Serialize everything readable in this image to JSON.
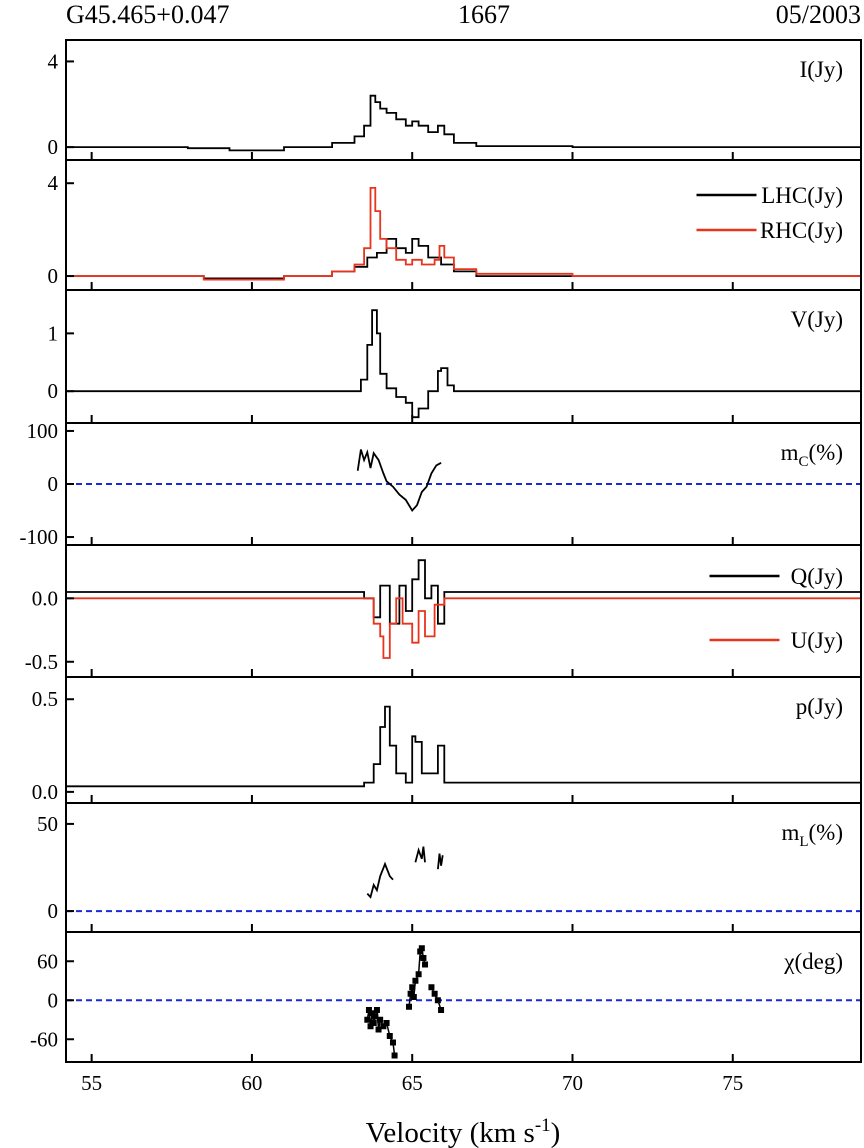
{
  "header": {
    "left": "G45.465+0.047",
    "center": "1667",
    "right": "05/2003"
  },
  "colors": {
    "black": "#000000",
    "red": "#e8341c",
    "zero_line": "#1a2bd6"
  },
  "chart_data": {
    "type": "line",
    "xlabel_main": "Velocity (km s",
    "xlabel_sup": "-1",
    "xlabel_tail": ")",
    "xlim": [
      54.2,
      79.0
    ],
    "xticks": [
      "55",
      "60",
      "65",
      "70",
      "75"
    ],
    "xtick_values": [
      55,
      60,
      65,
      70,
      75
    ],
    "panels": [
      {
        "id": "I",
        "label": "I(Jy)",
        "ylim": [
          -0.6,
          5.0
        ],
        "yticks": [
          0,
          4
        ],
        "ytick_labels": [
          "0",
          "4"
        ],
        "zero_line": false,
        "series": [
          {
            "color": "#000000",
            "legend": "",
            "kind": "step",
            "points": [
              [
                54.2,
                0.0
              ],
              [
                58.0,
                -0.05
              ],
              [
                59.3,
                -0.15
              ],
              [
                61.0,
                0.0
              ],
              [
                62.5,
                0.2
              ],
              [
                63.2,
                0.5
              ],
              [
                63.5,
                1.0
              ],
              [
                63.7,
                2.4
              ],
              [
                63.85,
                2.1
              ],
              [
                64.0,
                1.8
              ],
              [
                64.2,
                1.6
              ],
              [
                64.5,
                1.3
              ],
              [
                64.8,
                1.0
              ],
              [
                65.0,
                1.2
              ],
              [
                65.2,
                1.0
              ],
              [
                65.5,
                0.7
              ],
              [
                65.8,
                1.0
              ],
              [
                66.0,
                0.6
              ],
              [
                66.3,
                0.2
              ],
              [
                67.0,
                0.05
              ],
              [
                70.0,
                0.0
              ],
              [
                79.0,
                0.0
              ]
            ]
          }
        ]
      },
      {
        "id": "LR",
        "label": "",
        "ylim": [
          -0.6,
          5.0
        ],
        "yticks": [
          0,
          4
        ],
        "ytick_labels": [
          "0",
          "4"
        ],
        "zero_line": false,
        "series": [
          {
            "color": "#000000",
            "legend": "LHC(Jy)",
            "kind": "step",
            "points": [
              [
                54.2,
                0.0
              ],
              [
                58.5,
                -0.1
              ],
              [
                59.5,
                -0.1
              ],
              [
                61.0,
                0.0
              ],
              [
                62.5,
                0.2
              ],
              [
                63.2,
                0.4
              ],
              [
                63.6,
                0.8
              ],
              [
                63.9,
                1.0
              ],
              [
                64.2,
                1.6
              ],
              [
                64.5,
                1.2
              ],
              [
                64.8,
                1.0
              ],
              [
                65.0,
                1.6
              ],
              [
                65.2,
                1.3
              ],
              [
                65.5,
                0.8
              ],
              [
                65.9,
                0.5
              ],
              [
                66.3,
                0.2
              ],
              [
                67.0,
                0.0
              ],
              [
                79.0,
                0.0
              ]
            ]
          },
          {
            "color": "#e8341c",
            "legend": "RHC(Jy)",
            "kind": "step",
            "points": [
              [
                54.2,
                0.0
              ],
              [
                58.5,
                -0.15
              ],
              [
                59.5,
                -0.15
              ],
              [
                61.0,
                0.0
              ],
              [
                62.5,
                0.2
              ],
              [
                63.2,
                0.5
              ],
              [
                63.5,
                1.2
              ],
              [
                63.7,
                3.8
              ],
              [
                63.85,
                2.8
              ],
              [
                64.0,
                1.6
              ],
              [
                64.2,
                1.2
              ],
              [
                64.5,
                0.7
              ],
              [
                64.8,
                0.5
              ],
              [
                65.0,
                0.7
              ],
              [
                65.3,
                0.5
              ],
              [
                65.7,
                0.7
              ],
              [
                65.85,
                1.3
              ],
              [
                66.0,
                0.8
              ],
              [
                66.3,
                0.3
              ],
              [
                67.0,
                0.1
              ],
              [
                70.0,
                0.0
              ],
              [
                79.0,
                0.05
              ]
            ]
          }
        ]
      },
      {
        "id": "V",
        "label": "V(Jy)",
        "ylim": [
          -0.55,
          1.75
        ],
        "yticks": [
          0,
          1
        ],
        "ytick_labels": [
          "0",
          "1"
        ],
        "zero_line": false,
        "series": [
          {
            "color": "#000000",
            "legend": "",
            "kind": "step",
            "points": [
              [
                54.2,
                0.0
              ],
              [
                63.0,
                0.0
              ],
              [
                63.4,
                0.2
              ],
              [
                63.6,
                0.8
              ],
              [
                63.75,
                1.4
              ],
              [
                63.9,
                1.0
              ],
              [
                64.0,
                0.3
              ],
              [
                64.2,
                0.05
              ],
              [
                64.5,
                -0.1
              ],
              [
                64.8,
                -0.2
              ],
              [
                65.0,
                -0.45
              ],
              [
                65.2,
                -0.3
              ],
              [
                65.5,
                0.0
              ],
              [
                65.8,
                0.35
              ],
              [
                65.9,
                0.4
              ],
              [
                66.1,
                0.1
              ],
              [
                66.3,
                0.0
              ],
              [
                79.0,
                0.0
              ]
            ]
          }
        ]
      },
      {
        "id": "mC",
        "label": "m",
        "label_sub": "C",
        "label_tail": "(%)",
        "ylim": [
          -115,
          115
        ],
        "yticks": [
          -100,
          0,
          100
        ],
        "ytick_labels": [
          "-100",
          "0",
          "100"
        ],
        "zero_line": true,
        "series": [
          {
            "color": "#000000",
            "legend": "",
            "kind": "line",
            "points": [
              [
                63.3,
                25
              ],
              [
                63.4,
                65
              ],
              [
                63.5,
                45
              ],
              [
                63.6,
                60
              ],
              [
                63.7,
                30
              ],
              [
                63.8,
                58
              ],
              [
                63.95,
                45
              ],
              [
                64.1,
                20
              ],
              [
                64.2,
                5
              ],
              [
                64.4,
                -5
              ],
              [
                64.6,
                -20
              ],
              [
                64.8,
                -30
              ],
              [
                65.0,
                -50
              ],
              [
                65.15,
                -40
              ],
              [
                65.3,
                -15
              ],
              [
                65.45,
                -5
              ],
              [
                65.6,
                20
              ],
              [
                65.75,
                35
              ],
              [
                65.9,
                40
              ]
            ]
          }
        ]
      },
      {
        "id": "QU",
        "label": "",
        "ylim": [
          -0.62,
          0.42
        ],
        "yticks": [
          -0.5,
          0.0
        ],
        "ytick_labels": [
          "-0.5",
          "0.0"
        ],
        "zero_line": false,
        "series": [
          {
            "color": "#000000",
            "legend": "Q(Jy)",
            "kind": "step",
            "points": [
              [
                54.2,
                0.05
              ],
              [
                63.5,
                0.0
              ],
              [
                63.8,
                -0.15
              ],
              [
                64.0,
                0.1
              ],
              [
                64.3,
                -0.2
              ],
              [
                64.6,
                0.1
              ],
              [
                64.8,
                -0.1
              ],
              [
                65.0,
                0.15
              ],
              [
                65.2,
                0.3
              ],
              [
                65.4,
                0.0
              ],
              [
                65.6,
                0.1
              ],
              [
                65.8,
                -0.2
              ],
              [
                66.0,
                0.05
              ],
              [
                79.0,
                0.0
              ]
            ]
          },
          {
            "color": "#e8341c",
            "legend": "U(Jy)",
            "kind": "step",
            "points": [
              [
                54.2,
                0.0
              ],
              [
                63.6,
                0.0
              ],
              [
                63.8,
                -0.2
              ],
              [
                64.0,
                -0.3
              ],
              [
                64.1,
                -0.47
              ],
              [
                64.3,
                -0.2
              ],
              [
                64.5,
                0.0
              ],
              [
                64.7,
                -0.2
              ],
              [
                65.0,
                -0.35
              ],
              [
                65.2,
                -0.1
              ],
              [
                65.4,
                -0.3
              ],
              [
                65.7,
                -0.05
              ],
              [
                66.0,
                0.0
              ],
              [
                79.0,
                0.0
              ]
            ]
          }
        ]
      },
      {
        "id": "p",
        "label": "p(Jy)",
        "ylim": [
          -0.06,
          0.62
        ],
        "yticks": [
          0.0,
          0.5
        ],
        "ytick_labels": [
          "0.0",
          "0.5"
        ],
        "zero_line": false,
        "series": [
          {
            "color": "#000000",
            "legend": "",
            "kind": "step",
            "points": [
              [
                54.2,
                0.03
              ],
              [
                63.5,
                0.05
              ],
              [
                63.8,
                0.15
              ],
              [
                64.0,
                0.35
              ],
              [
                64.15,
                0.46
              ],
              [
                64.3,
                0.25
              ],
              [
                64.5,
                0.1
              ],
              [
                64.8,
                0.05
              ],
              [
                65.0,
                0.3
              ],
              [
                65.1,
                0.27
              ],
              [
                65.3,
                0.1
              ],
              [
                65.6,
                0.1
              ],
              [
                65.8,
                0.25
              ],
              [
                66.0,
                0.05
              ],
              [
                79.0,
                0.03
              ]
            ]
          }
        ]
      },
      {
        "id": "mL",
        "label": "m",
        "label_sub": "L",
        "label_tail": "(%)",
        "ylim": [
          -12,
          62
        ],
        "yticks": [
          0,
          50
        ],
        "ytick_labels": [
          "0",
          "50"
        ],
        "zero_line": true,
        "series": [
          {
            "color": "#000000",
            "legend": "",
            "kind": "segments",
            "segments": [
              [
                [
                  63.6,
                  10
                ],
                [
                  63.7,
                  8
                ],
                [
                  63.8,
                  15
                ],
                [
                  63.9,
                  12
                ],
                [
                  64.0,
                  20
                ],
                [
                  64.15,
                  27
                ],
                [
                  64.3,
                  20
                ],
                [
                  64.4,
                  18
                ]
              ],
              [
                [
                  65.1,
                  28
                ],
                [
                  65.2,
                  35
                ],
                [
                  65.3,
                  30
                ],
                [
                  65.35,
                  37
                ],
                [
                  65.4,
                  28
                ]
              ],
              [
                [
                  65.8,
                  24
                ],
                [
                  65.85,
                  33
                ],
                [
                  65.9,
                  26
                ],
                [
                  65.95,
                  32
                ]
              ]
            ]
          }
        ]
      },
      {
        "id": "chi",
        "label": "χ(deg)",
        "ylim": [
          -95,
          105
        ],
        "yticks": [
          -60,
          0,
          60
        ],
        "ytick_labels": [
          "-60",
          "0",
          "60"
        ],
        "zero_line": true,
        "series": [
          {
            "color": "#000000",
            "legend": "",
            "kind": "markers",
            "segments": [
              [
                [
                  63.6,
                  -30
                ],
                [
                  63.65,
                  -15
                ],
                [
                  63.7,
                  -40
                ],
                [
                  63.75,
                  -20
                ],
                [
                  63.8,
                  -35
                ],
                [
                  63.85,
                  -25
                ],
                [
                  63.9,
                  -15
                ],
                [
                  63.95,
                  -45
                ],
                [
                  64.0,
                  -30
                ],
                [
                  64.1,
                  -40
                ],
                [
                  64.2,
                  -35
                ],
                [
                  64.3,
                  -55
                ],
                [
                  64.4,
                  -65
                ],
                [
                  64.45,
                  -85
                ]
              ],
              [
                [
                  64.9,
                  -10
                ],
                [
                  64.95,
                  10
                ],
                [
                  65.0,
                  20
                ],
                [
                  65.05,
                  5
                ],
                [
                  65.1,
                  30
                ],
                [
                  65.2,
                  40
                ],
                [
                  65.25,
                  75
                ],
                [
                  65.3,
                  80
                ],
                [
                  65.35,
                  65
                ],
                [
                  65.4,
                  55
                ]
              ],
              [
                [
                  65.6,
                  20
                ],
                [
                  65.7,
                  10
                ],
                [
                  65.8,
                  0
                ],
                [
                  65.9,
                  -15
                ]
              ]
            ]
          }
        ]
      }
    ]
  }
}
